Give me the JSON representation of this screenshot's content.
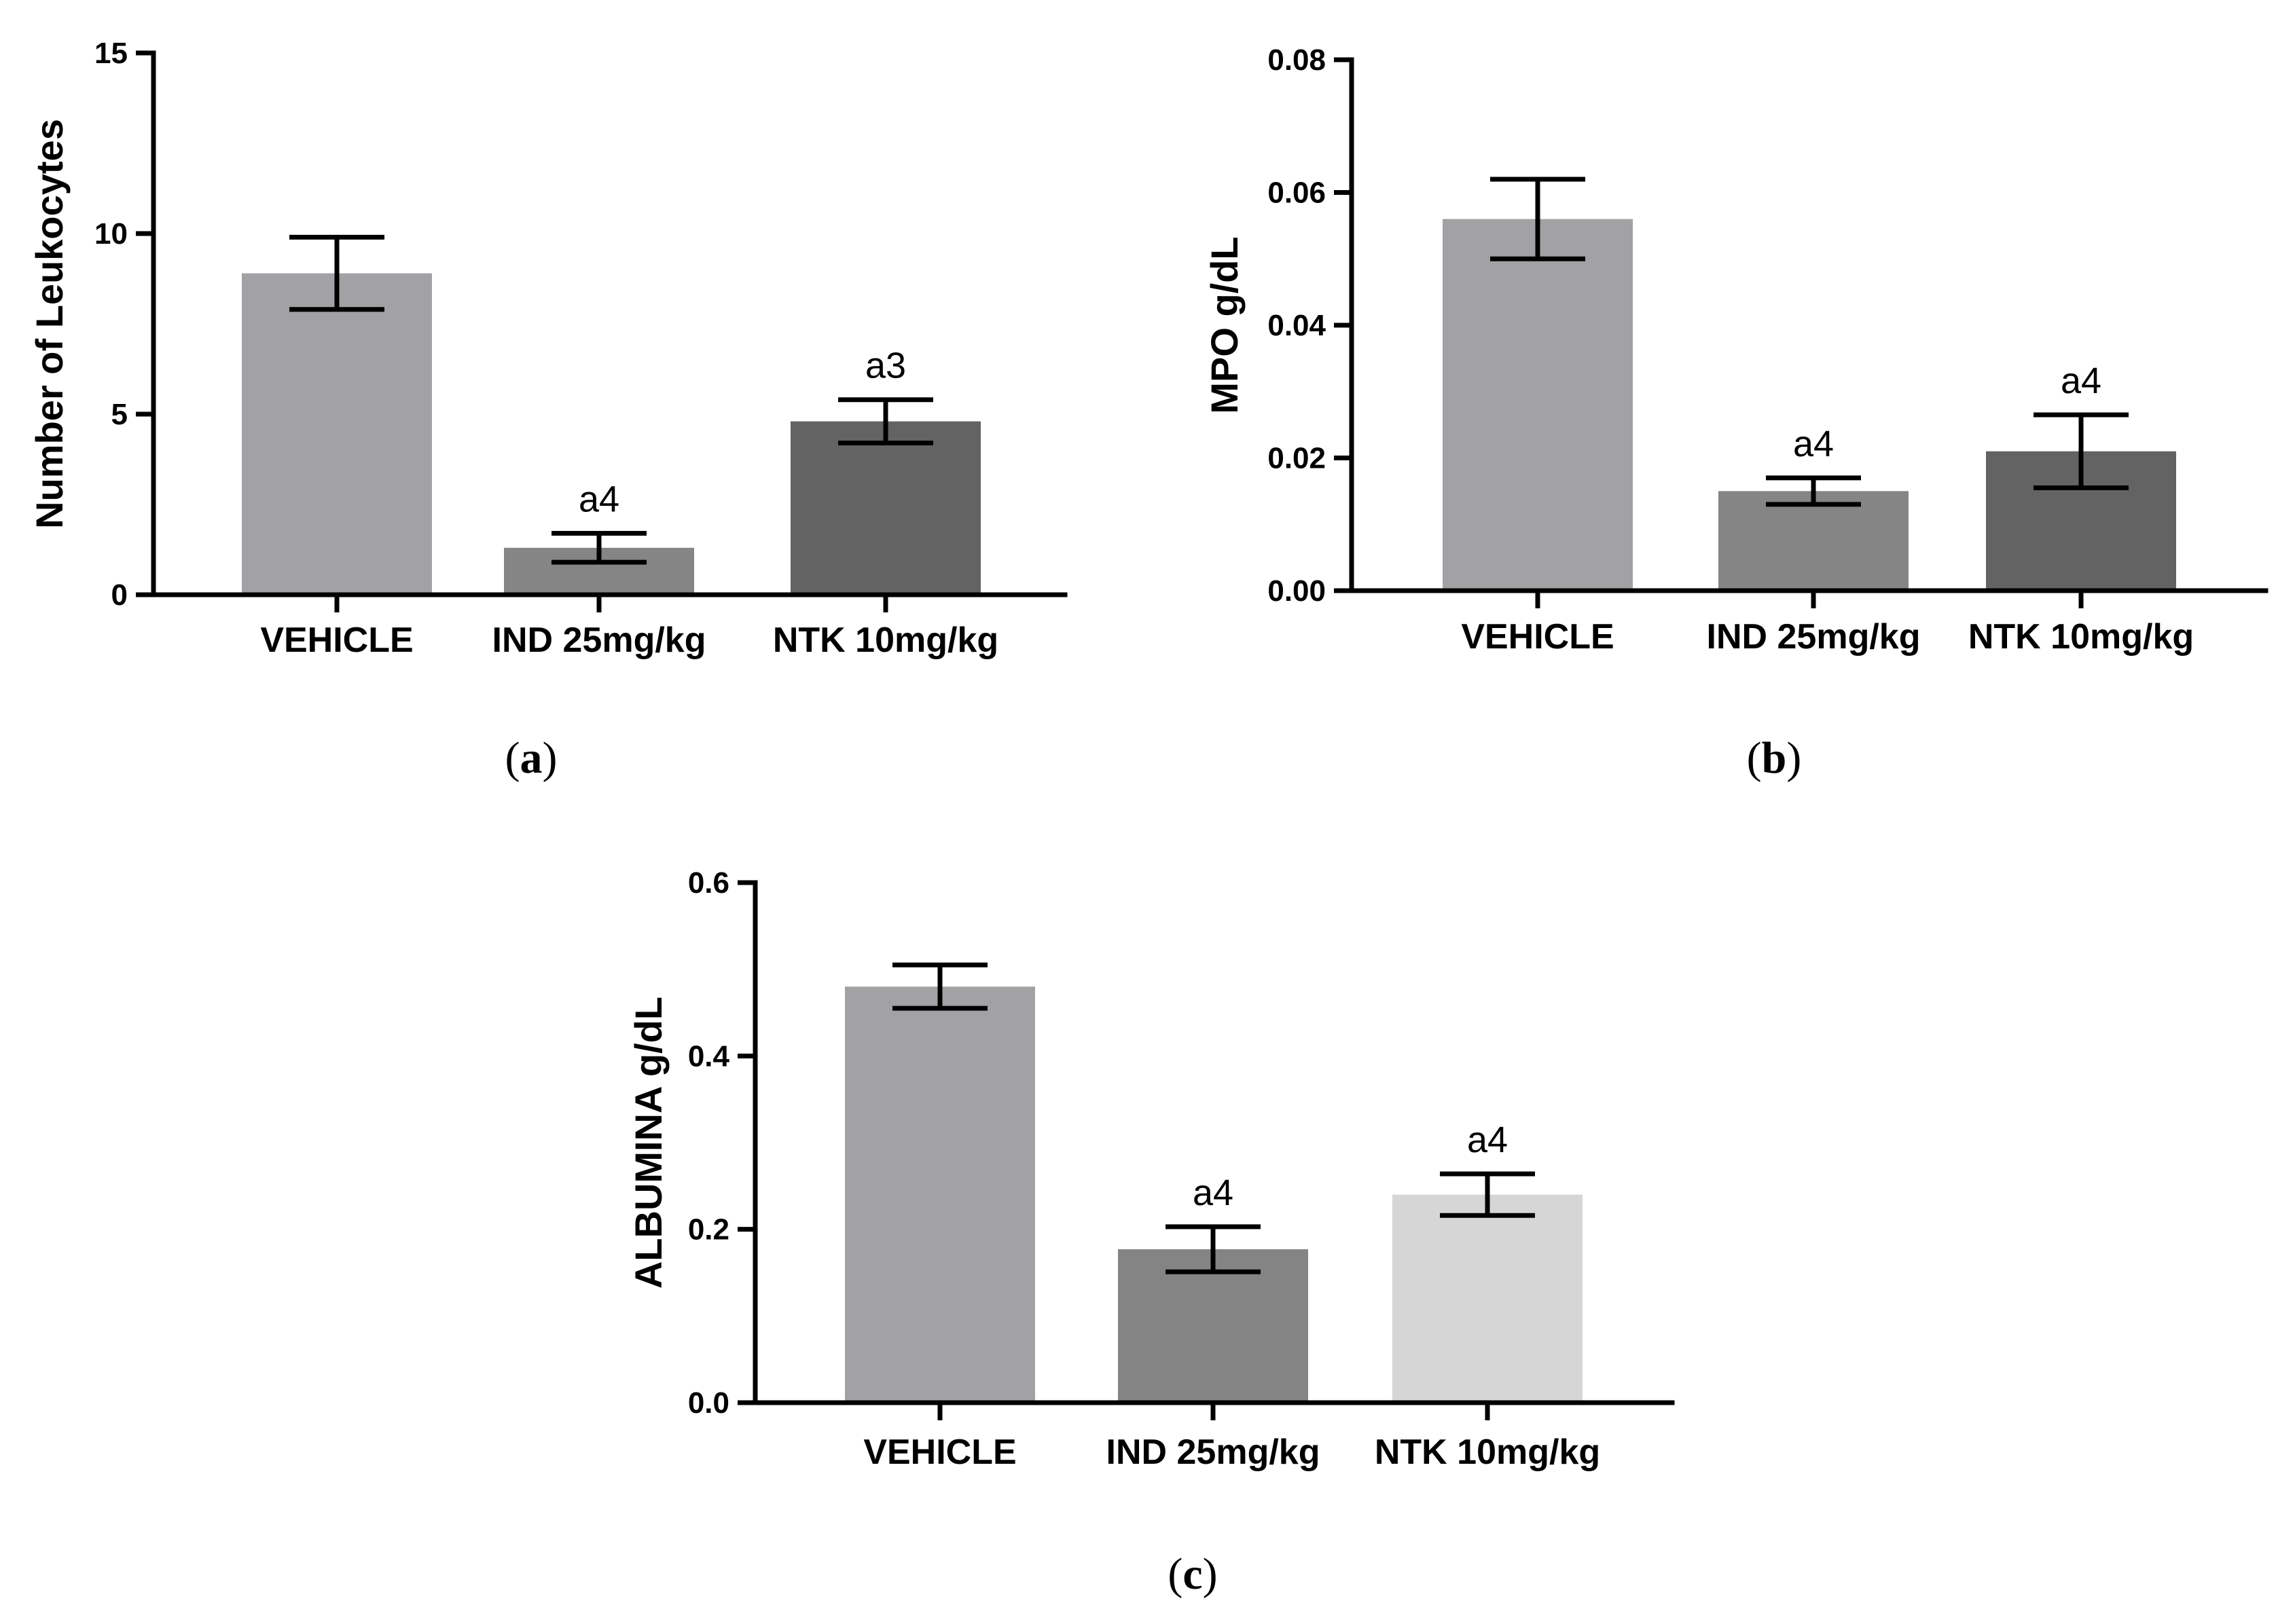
{
  "chart_data": [
    {
      "type": "bar",
      "panel": "a",
      "categories": [
        "VEHICLE",
        "IND 25mg/kg",
        "NTK 10mg/kg"
      ],
      "values": [
        8.9,
        1.3,
        4.8
      ],
      "errors": [
        1.0,
        0.4,
        0.6
      ],
      "significance": [
        "",
        "a4",
        "a3"
      ],
      "colors": [
        "#a2a2a5",
        "#858585",
        "#636363"
      ],
      "title": "",
      "xlabel": "",
      "ylabel": "Number of Leukocytes",
      "ylim": [
        0,
        15
      ],
      "yticks": [
        0,
        5,
        10,
        15
      ],
      "ytick_labels": [
        "0",
        "5",
        "10",
        "15"
      ]
    },
    {
      "type": "bar",
      "panel": "b",
      "categories": [
        "VEHICLE",
        "IND 25mg/kg",
        "NTK 10mg/kg"
      ],
      "values": [
        0.056,
        0.015,
        0.021
      ],
      "errors": [
        0.006,
        0.002,
        0.0055
      ],
      "significance": [
        "",
        "a4",
        "a4"
      ],
      "colors": [
        "#a2a2a5",
        "#858585",
        "#636363"
      ],
      "title": "",
      "xlabel": "",
      "ylabel": "MPO g/dL",
      "ylim": [
        0,
        0.08
      ],
      "yticks": [
        0,
        0.02,
        0.04,
        0.06,
        0.08
      ],
      "ytick_labels": [
        "0.00",
        "0.02",
        "0.04",
        "0.06",
        "0.08"
      ]
    },
    {
      "type": "bar",
      "panel": "c",
      "categories": [
        "VEHICLE",
        "IND 25mg/kg",
        "NTK 10mg/kg"
      ],
      "values": [
        0.48,
        0.177,
        0.24
      ],
      "errors": [
        0.025,
        0.026,
        0.024
      ],
      "significance": [
        "",
        "a4",
        "a4"
      ],
      "colors": [
        "#a2a2a5",
        "#848484",
        "#d6d6d6"
      ],
      "title": "",
      "xlabel": "",
      "ylabel": "ALBUMINA g/dL",
      "ylim": [
        0,
        0.6
      ],
      "yticks": [
        0,
        0.2,
        0.4,
        0.6
      ],
      "ytick_labels": [
        "0.0",
        "0.2",
        "0.4",
        "0.6"
      ]
    }
  ],
  "panel_labels": [
    "a",
    "b",
    "c"
  ]
}
